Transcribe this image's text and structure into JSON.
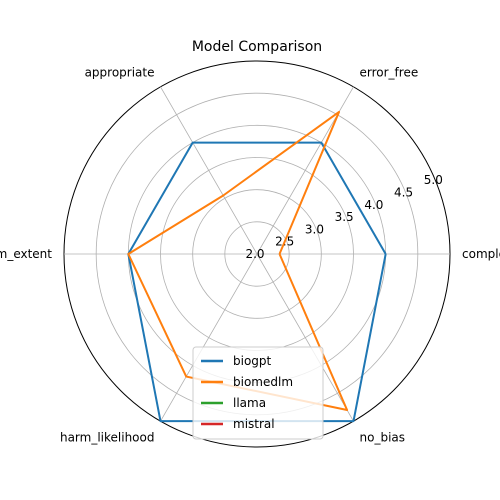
{
  "chart_data": {
    "type": "radar",
    "title": "Model Comparison",
    "axes": [
      "complete",
      "error_free",
      "appropriate",
      "harm_extent",
      "harm_likelihood",
      "no_bias"
    ],
    "rlim": [
      2.0,
      5.0
    ],
    "r_ticks": [
      "2.0",
      "2.5",
      "3.0",
      "3.5",
      "4.0",
      "4.5",
      "5.0"
    ],
    "series": [
      {
        "name": "biogpt",
        "color": "#1f77b4",
        "values": [
          4.0,
          4.0,
          4.0,
          4.0,
          5.0,
          5.0
        ]
      },
      {
        "name": "biomedlm",
        "color": "#ff7f0e",
        "values": [
          2.35,
          4.55,
          3.05,
          4.0,
          4.2,
          4.8
        ]
      },
      {
        "name": "llama",
        "color": "#2ca02c",
        "values": []
      },
      {
        "name": "mistral",
        "color": "#d62728",
        "values": []
      }
    ],
    "legend_position": "lower-center"
  }
}
